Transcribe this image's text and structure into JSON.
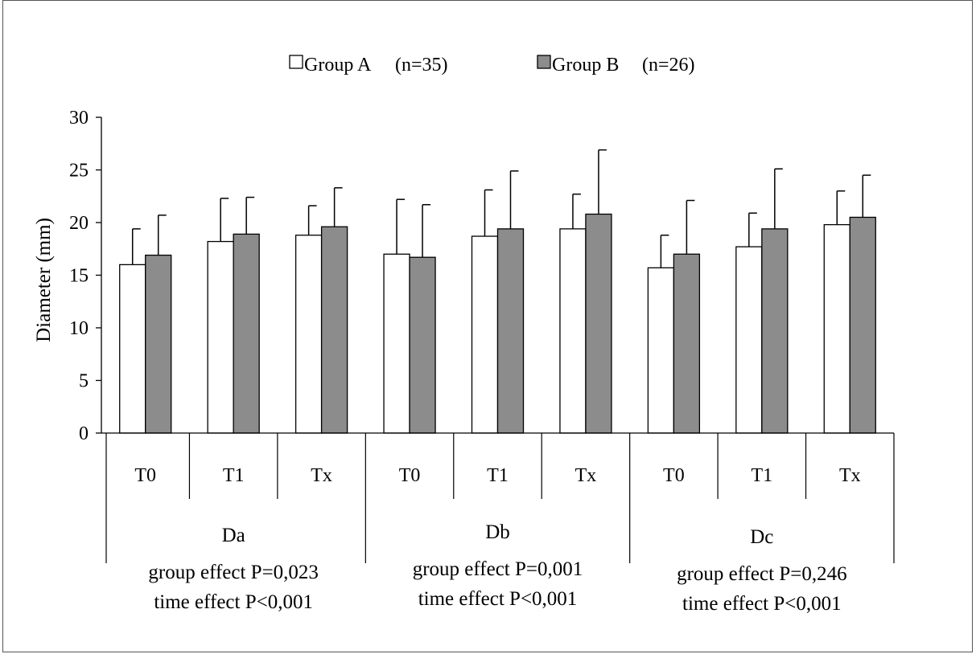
{
  "chart_data": {
    "type": "bar",
    "ylabel": "Diameter (mm)",
    "ylim": [
      0,
      30
    ],
    "yticks": [
      0,
      5,
      10,
      15,
      20,
      25,
      30
    ],
    "grid": false,
    "legend_position": "top-center",
    "legend": [
      {
        "label": "Group A",
        "n": "(n=35)"
      },
      {
        "label": "Group B",
        "n": "(n=26)"
      }
    ],
    "categories": [
      "T0",
      "T1",
      "Tx",
      "T0",
      "T1",
      "Tx",
      "T0",
      "T1",
      "Tx"
    ],
    "groups": [
      {
        "name": "Da",
        "line1": "group effect P=0,023",
        "line2": "time effect P<0,001"
      },
      {
        "name": "Db",
        "line1": "group effect P=0,001",
        "line2": "time effect P<0,001"
      },
      {
        "name": "Dc",
        "line1": "group effect P=0,246",
        "line2": "time effect P<0,001"
      }
    ],
    "series": [
      {
        "name": "Group A",
        "color": "#ffffff",
        "values": [
          16.0,
          18.2,
          18.8,
          17.0,
          18.7,
          19.4,
          15.7,
          17.7,
          19.8
        ],
        "error_upper": [
          19.4,
          22.3,
          21.6,
          22.2,
          23.1,
          22.7,
          18.8,
          20.9,
          23.0
        ]
      },
      {
        "name": "Group B",
        "color": "#8c8c8c",
        "values": [
          16.9,
          18.9,
          19.6,
          16.7,
          19.4,
          20.8,
          17.0,
          19.4,
          20.5
        ],
        "error_upper": [
          20.7,
          22.4,
          23.3,
          21.7,
          24.9,
          26.9,
          22.1,
          25.1,
          24.5
        ]
      }
    ]
  }
}
